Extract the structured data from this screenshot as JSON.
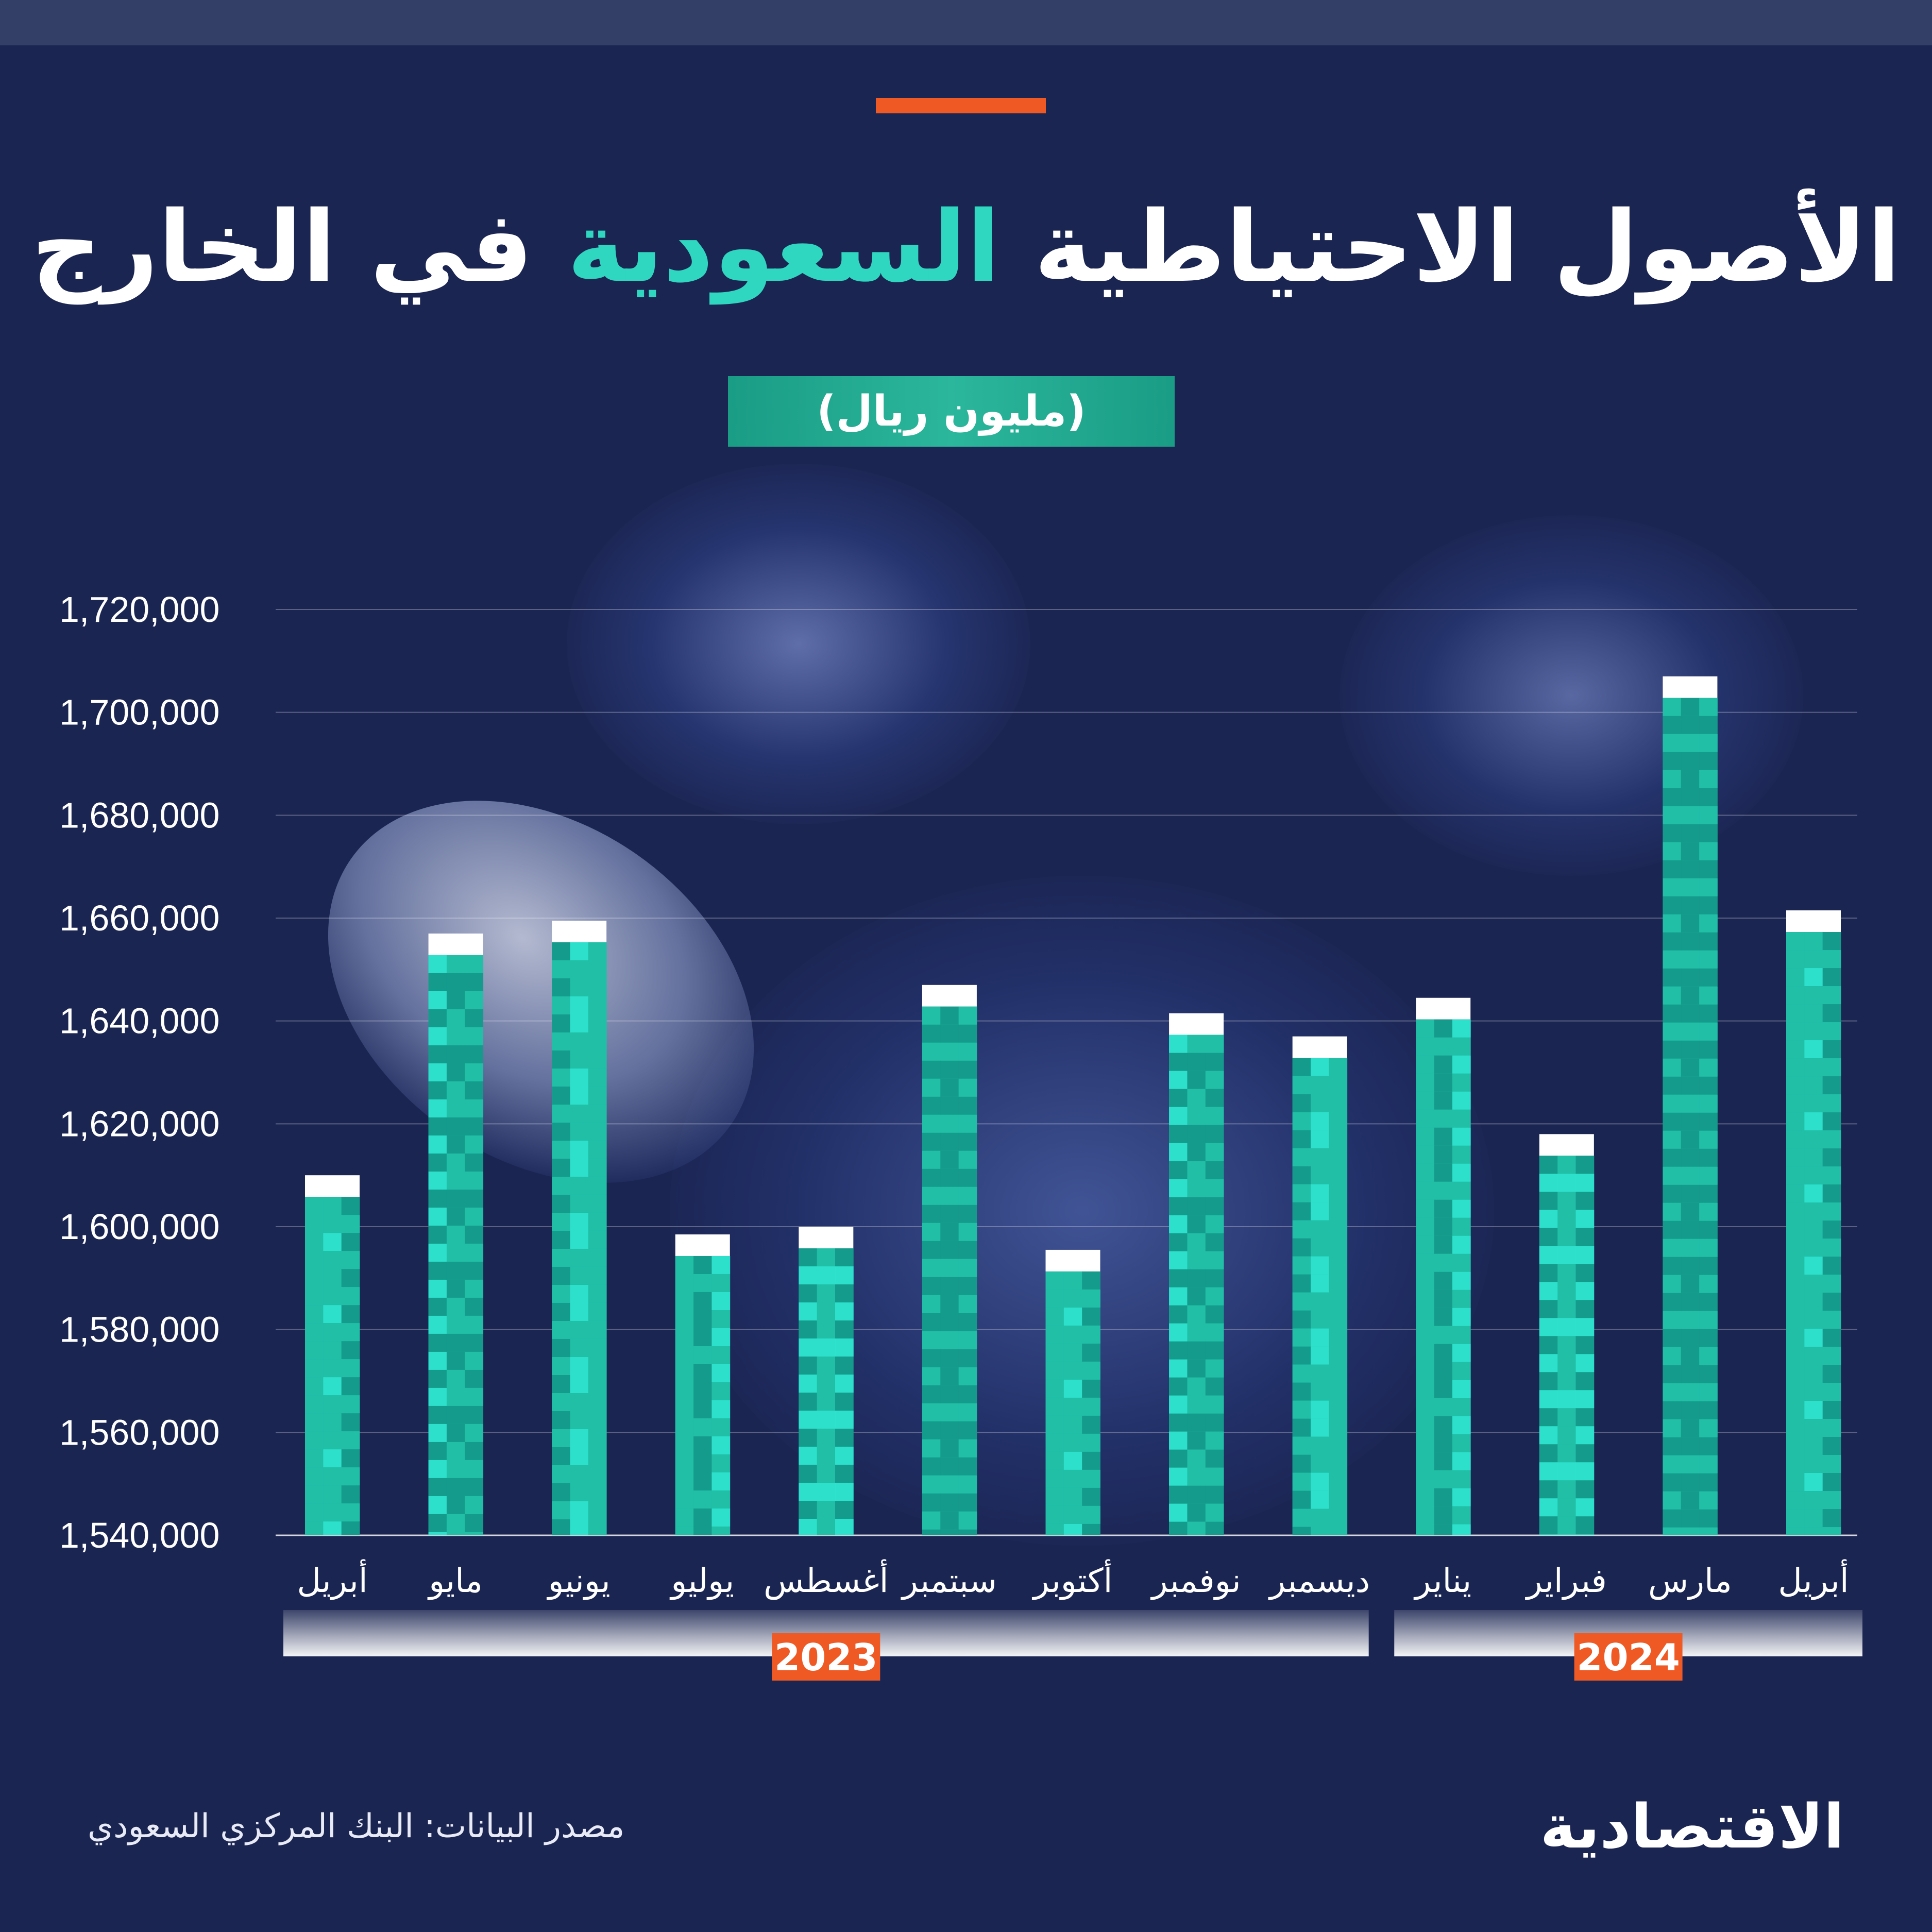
{
  "header": {
    "title_part1": "الأصول الاحتياطية",
    "title_highlight": "السعودية",
    "title_part2": "في الخارج",
    "unit": "(مليون ريال)"
  },
  "colors": {
    "background": "#1b2552",
    "bar": "#20bfa6",
    "bar_light": "#2fe3cf",
    "bar_dark": "#14978a",
    "bar_cap": "#ffffff",
    "accent": "#ef5a24",
    "highlight": "#2fd6c0"
  },
  "chart_data": {
    "type": "bar",
    "categories": [
      "أبريل",
      "مايو",
      "يونيو",
      "يوليو",
      "أغسطس",
      "سبتمبر",
      "أكتوبر",
      "نوفمبر",
      "ديسمبر",
      "يناير",
      "فبراير",
      "مارس",
      "أبريل"
    ],
    "values": [
      1610000,
      1657000,
      1659500,
      1598500,
      1600000,
      1647000,
      1595500,
      1641500,
      1637000,
      1644500,
      1618000,
      1707000,
      1661500
    ],
    "yticks": [
      "1,720,000",
      "1,700,000",
      "1,680,000",
      "1,660,000",
      "1,640,000",
      "1,620,000",
      "1,600,000",
      "1,580,000",
      "1,560,000",
      "1,540,000"
    ],
    "ylim": [
      1540000,
      1720000
    ],
    "years": [
      {
        "label": "2023",
        "from": 0,
        "to": 8
      },
      {
        "label": "2024",
        "from": 9,
        "to": 12
      }
    ],
    "grid": true
  },
  "footer": {
    "source": "مصدر البيانات: البنك المركزي السعودي",
    "logo": "الاقتصادية"
  }
}
